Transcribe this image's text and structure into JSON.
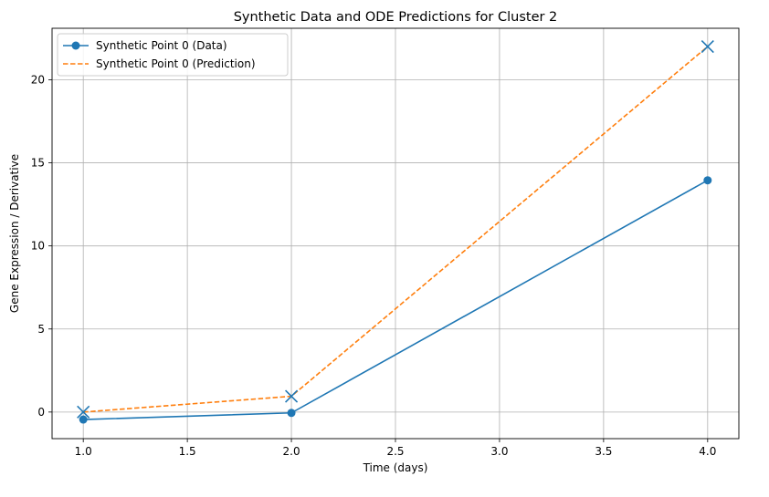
{
  "chart_data": {
    "type": "line",
    "title": "Synthetic Data and ODE Predictions for Cluster 2",
    "xlabel": "Time (days)",
    "ylabel": "Gene Expression / Derivative",
    "xlim": [
      0.85,
      4.15
    ],
    "ylim": [
      -1.6,
      23.1
    ],
    "xticks": [
      1.0,
      1.5,
      2.0,
      2.5,
      3.0,
      3.5,
      4.0
    ],
    "xtick_labels": [
      "1.0",
      "1.5",
      "2.0",
      "2.5",
      "3.0",
      "3.5",
      "4.0"
    ],
    "yticks": [
      0,
      5,
      10,
      15,
      20
    ],
    "ytick_labels": [
      "0",
      "5",
      "10",
      "15",
      "20"
    ],
    "grid": true,
    "legend_position": "top-left",
    "series": [
      {
        "name": "Synthetic Point 0 (Data)",
        "color": "#1f77b4",
        "line_style": "solid",
        "marker": "circle",
        "x": [
          1,
          2,
          4
        ],
        "y": [
          -0.45,
          -0.05,
          13.95
        ]
      },
      {
        "name": "Synthetic Point 0 (Prediction)",
        "color": "#ff7f0e",
        "line_style": "dashed",
        "marker": "none",
        "x": [
          1,
          2,
          4
        ],
        "y": [
          0.0,
          0.95,
          22.0
        ]
      }
    ],
    "point_markers": {
      "marker": "x",
      "color": "#1f77b4",
      "x": [
        1,
        2,
        4
      ],
      "y": [
        0.0,
        0.95,
        22.0
      ]
    }
  }
}
